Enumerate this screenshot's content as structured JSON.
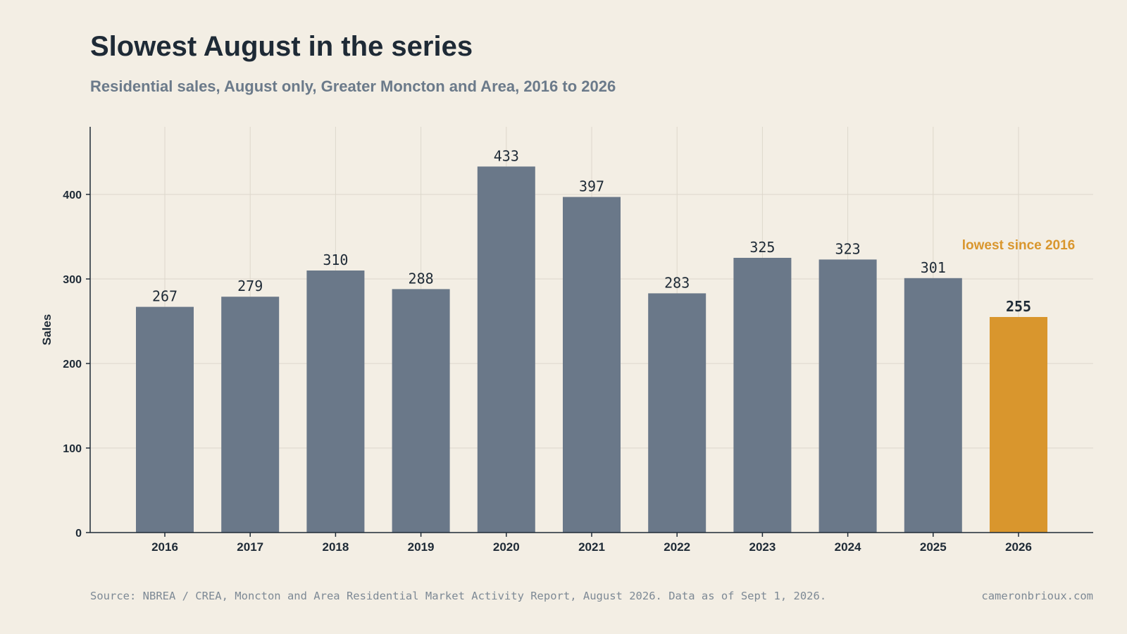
{
  "header": {
    "title": "Slowest August in the series",
    "subtitle": "Residential sales, August only, Greater Moncton and Area, 2016 to 2026"
  },
  "chart_data": {
    "type": "bar",
    "categories": [
      "2016",
      "2017",
      "2018",
      "2019",
      "2020",
      "2021",
      "2022",
      "2023",
      "2024",
      "2025",
      "2026"
    ],
    "values": [
      267,
      279,
      310,
      288,
      433,
      397,
      283,
      325,
      323,
      301,
      255
    ],
    "data_labels": [
      "267",
      "279",
      "310",
      "288",
      "433",
      "397",
      "283",
      "325",
      "323",
      "301",
      "255"
    ],
    "title": "Slowest August in the series",
    "subtitle": "Residential sales, August only, Greater Moncton and Area, 2016 to 2026",
    "xlabel": "",
    "ylabel": "Sales",
    "ylim": [
      0,
      480
    ],
    "yticks": [
      0,
      100,
      200,
      300,
      400
    ],
    "ytick_labels": [
      "0",
      "100",
      "200",
      "300",
      "400"
    ],
    "grid": true,
    "highlight_index": 10,
    "annotation": "lowest since 2016",
    "colors": {
      "bar": "#6a7889",
      "highlight": "#d9962d",
      "text": "#1e2a36",
      "grid": "#ddd7cb"
    }
  },
  "footer": {
    "source": "Source: NBREA / CREA, Moncton and Area Residential Market Activity Report, August 2026. Data as of Sept 1, 2026.",
    "site": "cameronbrioux.com"
  }
}
